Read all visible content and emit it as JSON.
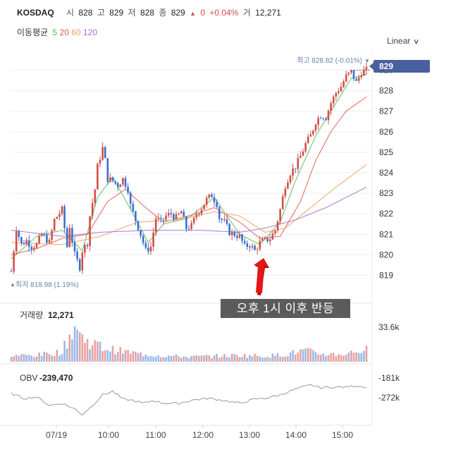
{
  "header": {
    "symbol": "KOSDAQ",
    "open_label": "시",
    "open": "828",
    "high_label": "고",
    "high": "829",
    "low_label": "저",
    "low": "828",
    "close_label": "종",
    "close": "829",
    "change_arrow": "▲",
    "change": "0",
    "change_pct": "+0.04%",
    "volume_label": "거",
    "volume": "12,271"
  },
  "moving_average": {
    "label": "이동평균",
    "periods": [
      {
        "value": "5",
        "color": "#57b857"
      },
      {
        "value": "20",
        "color": "#e05a4e"
      },
      {
        "value": "60",
        "color": "#f0a060"
      },
      {
        "value": "120",
        "color": "#a070d0"
      }
    ]
  },
  "scale_selector": {
    "value": "Linear"
  },
  "price_panel": {
    "current_price": "829",
    "high_marker": "최고 828.82 (-0.01%)",
    "low_marker": "최저 818.98 (1.19%)"
  },
  "volume_panel": {
    "label": "거래량",
    "value": "12,271",
    "axis_label": "33.6k"
  },
  "obv_panel": {
    "label": "OBV",
    "value": "-239,470",
    "axis_labels": [
      "-181k",
      "-272k"
    ]
  },
  "annotation": {
    "text": "오후 1시 이후 반등"
  },
  "colors": {
    "up": "#d24f45",
    "down": "#3a6fd0",
    "ma5": "#57b857",
    "ma20": "#e05a4e",
    "ma60": "#f0a060",
    "ma120": "#a070d0",
    "price_tag": "#4a5f9e",
    "volume_up": "#e8a0a0",
    "volume_down": "#9ab8e8",
    "obv_line": "#999999"
  },
  "chart_data": {
    "type": "candlestick",
    "time_labels": [
      "07/19",
      "10:00",
      "11:00",
      "12:00",
      "13:00",
      "14:00",
      "15:00"
    ],
    "price_ticks": [
      819,
      820,
      821,
      822,
      823,
      824,
      825,
      826,
      827,
      828,
      829
    ],
    "ylim": [
      818.4,
      829.6
    ],
    "close_path": [
      [
        0,
        819.2
      ],
      [
        2,
        821.3
      ],
      [
        4,
        820.5
      ],
      [
        6,
        820.7
      ],
      [
        8,
        820.4
      ],
      [
        10,
        820.5
      ],
      [
        12,
        821.0
      ],
      [
        15,
        820.6
      ],
      [
        17,
        821.7
      ],
      [
        20,
        822.2
      ],
      [
        22,
        820.4
      ],
      [
        23,
        821.4
      ],
      [
        25,
        820.0
      ],
      [
        27,
        819.4
      ],
      [
        28,
        820.2
      ],
      [
        30,
        820.6
      ],
      [
        31,
        821.9
      ],
      [
        33,
        823.2
      ],
      [
        34,
        824.3
      ],
      [
        36,
        825.2
      ],
      [
        37,
        824.6
      ],
      [
        38,
        823.7
      ],
      [
        40,
        823.6
      ],
      [
        42,
        823.4
      ],
      [
        44,
        823.7
      ],
      [
        46,
        823.2
      ],
      [
        47,
        822.4
      ],
      [
        49,
        821.7
      ],
      [
        51,
        821.0
      ],
      [
        53,
        820.2
      ],
      [
        55,
        820.4
      ],
      [
        57,
        821.8
      ],
      [
        59,
        821.6
      ],
      [
        61,
        821.9
      ],
      [
        63,
        822.0
      ],
      [
        65,
        821.8
      ],
      [
        67,
        822.1
      ],
      [
        69,
        821.3
      ],
      [
        71,
        821.4
      ],
      [
        73,
        822.0
      ],
      [
        75,
        822.3
      ],
      [
        77,
        822.7
      ],
      [
        79,
        822.9
      ],
      [
        81,
        822.5
      ],
      [
        82,
        821.8
      ],
      [
        84,
        821.6
      ],
      [
        86,
        821.1
      ],
      [
        88,
        821.0
      ],
      [
        90,
        820.9
      ],
      [
        92,
        820.4
      ],
      [
        94,
        820.5
      ],
      [
        96,
        820.2
      ],
      [
        98,
        820.6
      ],
      [
        100,
        820.7
      ],
      [
        102,
        820.8
      ],
      [
        104,
        821.2
      ],
      [
        106,
        822.2
      ],
      [
        108,
        823.4
      ],
      [
        110,
        824.0
      ],
      [
        112,
        824.3
      ],
      [
        114,
        824.8
      ],
      [
        116,
        825.4
      ],
      [
        118,
        825.8
      ],
      [
        120,
        826.5
      ],
      [
        122,
        826.8
      ],
      [
        124,
        826.7
      ],
      [
        126,
        827.4
      ],
      [
        128,
        827.9
      ],
      [
        130,
        828.2
      ],
      [
        132,
        828.7
      ],
      [
        134,
        828.9
      ],
      [
        136,
        828.4
      ],
      [
        138,
        828.9
      ],
      [
        140,
        829.0
      ]
    ],
    "ma5_path": [
      [
        0,
        819.8
      ],
      [
        10,
        820.9
      ],
      [
        20,
        821.2
      ],
      [
        28,
        820.2
      ],
      [
        34,
        822.8
      ],
      [
        40,
        823.8
      ],
      [
        48,
        822.0
      ],
      [
        54,
        820.6
      ],
      [
        60,
        821.5
      ],
      [
        70,
        821.8
      ],
      [
        80,
        822.8
      ],
      [
        90,
        821.0
      ],
      [
        98,
        820.5
      ],
      [
        106,
        821.6
      ],
      [
        112,
        823.6
      ],
      [
        120,
        825.8
      ],
      [
        128,
        827.4
      ],
      [
        134,
        828.6
      ],
      [
        140,
        828.8
      ]
    ],
    "ma20_path": [
      [
        0,
        820.0
      ],
      [
        10,
        820.3
      ],
      [
        20,
        820.8
      ],
      [
        30,
        821.0
      ],
      [
        38,
        822.6
      ],
      [
        45,
        823.2
      ],
      [
        52,
        822.4
      ],
      [
        60,
        821.6
      ],
      [
        70,
        821.9
      ],
      [
        80,
        822.3
      ],
      [
        90,
        821.6
      ],
      [
        98,
        820.8
      ],
      [
        106,
        820.9
      ],
      [
        114,
        822.6
      ],
      [
        120,
        824.6
      ],
      [
        126,
        826.0
      ],
      [
        132,
        827.0
      ],
      [
        140,
        827.7
      ]
    ],
    "ma60_path": [
      [
        0,
        820.6
      ],
      [
        20,
        820.5
      ],
      [
        35,
        820.9
      ],
      [
        50,
        821.6
      ],
      [
        65,
        821.7
      ],
      [
        80,
        822.1
      ],
      [
        90,
        821.9
      ],
      [
        100,
        821.1
      ],
      [
        108,
        821.3
      ],
      [
        118,
        822.3
      ],
      [
        128,
        823.3
      ],
      [
        140,
        824.4
      ]
    ],
    "ma120_path": [
      [
        0,
        821.2
      ],
      [
        20,
        820.9
      ],
      [
        35,
        821.1
      ],
      [
        55,
        821.2
      ],
      [
        75,
        821.2
      ],
      [
        90,
        821.1
      ],
      [
        100,
        821.3
      ],
      [
        112,
        821.7
      ],
      [
        124,
        822.3
      ],
      [
        140,
        823.3
      ]
    ],
    "volume_path": [
      [
        0,
        0.15
      ],
      [
        10,
        0.16
      ],
      [
        20,
        0.25
      ],
      [
        25,
        0.9
      ],
      [
        28,
        0.6
      ],
      [
        30,
        0.5
      ],
      [
        33,
        0.45
      ],
      [
        36,
        0.35
      ],
      [
        40,
        0.3
      ],
      [
        45,
        0.25
      ],
      [
        50,
        0.2
      ],
      [
        60,
        0.15
      ],
      [
        70,
        0.12
      ],
      [
        80,
        0.14
      ],
      [
        90,
        0.16
      ],
      [
        100,
        0.14
      ],
      [
        108,
        0.18
      ],
      [
        116,
        0.28
      ],
      [
        120,
        0.2
      ],
      [
        130,
        0.18
      ],
      [
        140,
        0.3
      ]
    ],
    "obv_path": [
      [
        0,
        -248
      ],
      [
        5,
        -255
      ],
      [
        10,
        -253
      ],
      [
        15,
        -265
      ],
      [
        20,
        -262
      ],
      [
        25,
        -270
      ],
      [
        28,
        -278
      ],
      [
        32,
        -265
      ],
      [
        36,
        -250
      ],
      [
        40,
        -245
      ],
      [
        44,
        -256
      ],
      [
        48,
        -258
      ],
      [
        52,
        -262
      ],
      [
        56,
        -258
      ],
      [
        60,
        -262
      ],
      [
        66,
        -262
      ],
      [
        72,
        -257
      ],
      [
        78,
        -255
      ],
      [
        84,
        -258
      ],
      [
        90,
        -262
      ],
      [
        96,
        -256
      ],
      [
        100,
        -255
      ],
      [
        106,
        -250
      ],
      [
        112,
        -242
      ],
      [
        118,
        -236
      ],
      [
        122,
        -240
      ],
      [
        126,
        -239
      ],
      [
        132,
        -239
      ],
      [
        136,
        -237
      ],
      [
        140,
        -239
      ]
    ]
  }
}
